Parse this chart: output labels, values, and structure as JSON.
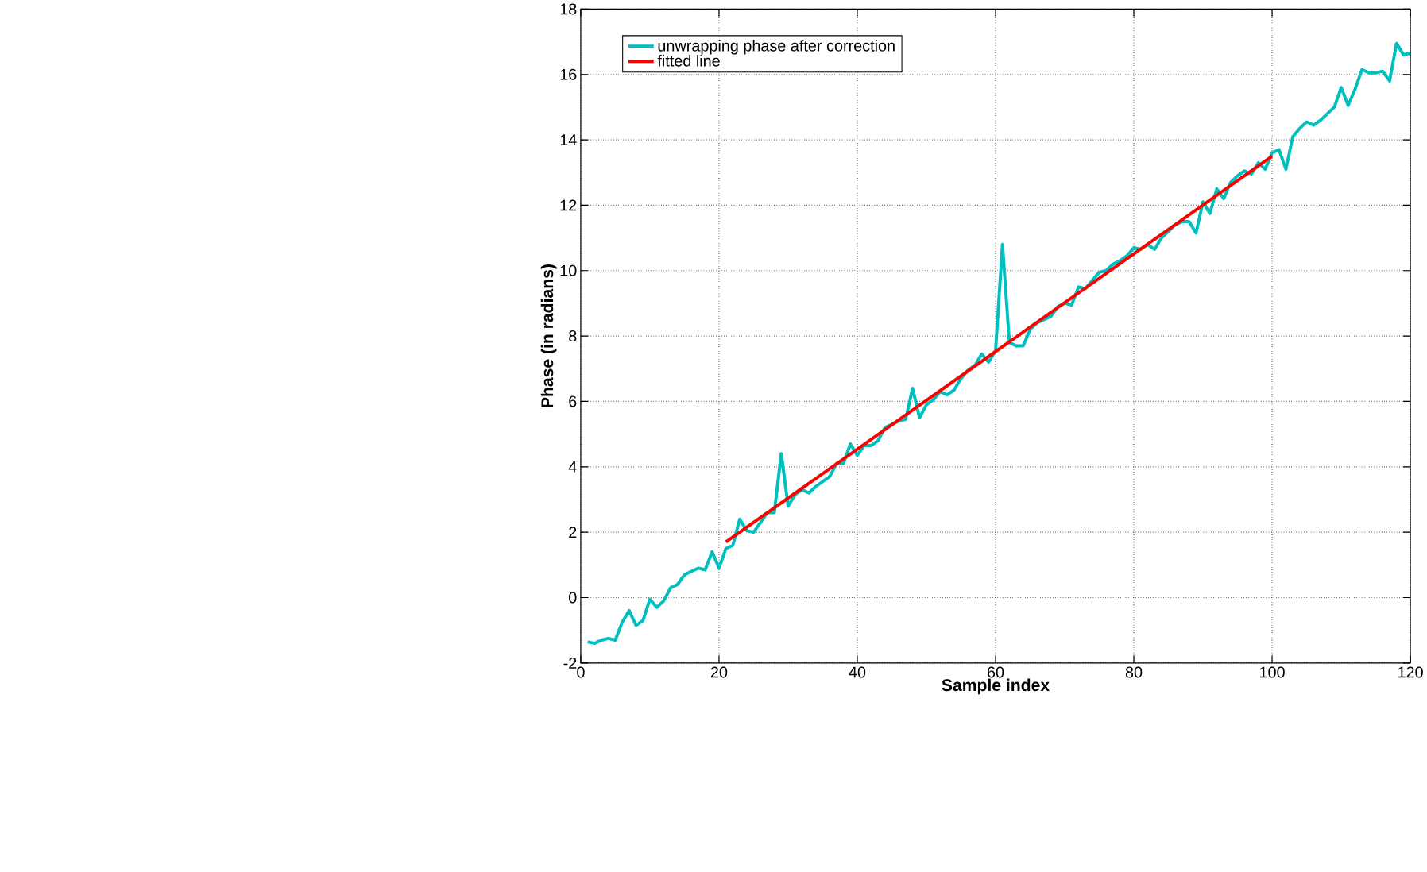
{
  "chart_data": {
    "type": "line",
    "xlabel": "Sample index",
    "ylabel": "Phase (in radians)",
    "xlim": [
      0,
      120
    ],
    "ylim": [
      -2,
      18
    ],
    "xticks": [
      0,
      20,
      40,
      60,
      80,
      100,
      120
    ],
    "yticks": [
      -2,
      0,
      2,
      4,
      6,
      8,
      10,
      12,
      14,
      16,
      18
    ],
    "grid": true,
    "legend": "top left",
    "series": [
      {
        "name": "unwrapping phase after correction",
        "color": "#00bfbf",
        "x": [
          1,
          2,
          3,
          4,
          5,
          6,
          7,
          8,
          9,
          10,
          11,
          12,
          13,
          14,
          15,
          16,
          17,
          18,
          19,
          20,
          21,
          22,
          23,
          24,
          25,
          26,
          27,
          28,
          29,
          30,
          31,
          32,
          33,
          34,
          35,
          36,
          37,
          38,
          39,
          40,
          41,
          42,
          43,
          44,
          45,
          46,
          47,
          48,
          49,
          50,
          51,
          52,
          53,
          54,
          55,
          56,
          57,
          58,
          59,
          60,
          61,
          62,
          63,
          64,
          65,
          66,
          67,
          68,
          69,
          70,
          71,
          72,
          73,
          74,
          75,
          76,
          77,
          78,
          79,
          80,
          81,
          82,
          83,
          84,
          85,
          86,
          87,
          88,
          89,
          90,
          91,
          92,
          93,
          94,
          95,
          96,
          97,
          98,
          99,
          100,
          101,
          102,
          103,
          104,
          105,
          106,
          107,
          108,
          109,
          110,
          111,
          112,
          113,
          114,
          115,
          116,
          117,
          118,
          119,
          120
        ],
        "values": [
          -1.35,
          -1.4,
          -1.3,
          -1.25,
          -1.3,
          -0.75,
          -0.4,
          -0.85,
          -0.7,
          -0.05,
          -0.3,
          -0.1,
          0.3,
          0.4,
          0.7,
          0.8,
          0.9,
          0.85,
          1.4,
          0.9,
          1.5,
          1.6,
          2.4,
          2.05,
          2.0,
          2.3,
          2.6,
          2.6,
          4.4,
          2.8,
          3.15,
          3.3,
          3.2,
          3.4,
          3.55,
          3.7,
          4.1,
          4.1,
          4.7,
          4.35,
          4.65,
          4.65,
          4.8,
          5.2,
          5.3,
          5.4,
          5.45,
          6.4,
          5.5,
          5.9,
          6.05,
          6.3,
          6.2,
          6.35,
          6.7,
          6.95,
          7.1,
          7.45,
          7.2,
          7.55,
          10.8,
          7.8,
          7.7,
          7.7,
          8.2,
          8.4,
          8.5,
          8.6,
          8.9,
          9.0,
          8.95,
          9.5,
          9.45,
          9.7,
          9.95,
          10.0,
          10.2,
          10.3,
          10.45,
          10.7,
          10.65,
          10.8,
          10.65,
          11.0,
          11.2,
          11.4,
          11.5,
          11.5,
          11.15,
          12.1,
          11.75,
          12.5,
          12.2,
          12.7,
          12.9,
          13.05,
          12.95,
          13.3,
          13.1,
          13.6,
          13.7,
          13.1,
          14.1,
          14.35,
          14.55,
          14.45,
          14.6,
          14.8,
          15.0,
          15.6,
          15.05,
          15.55,
          16.15,
          16.05,
          16.05,
          16.1,
          15.8,
          16.95,
          16.6,
          16.65
        ]
      },
      {
        "name": "fitted line",
        "color": "#ff0000",
        "x": [
          21,
          100
        ],
        "values": [
          1.7,
          13.5
        ]
      }
    ]
  }
}
